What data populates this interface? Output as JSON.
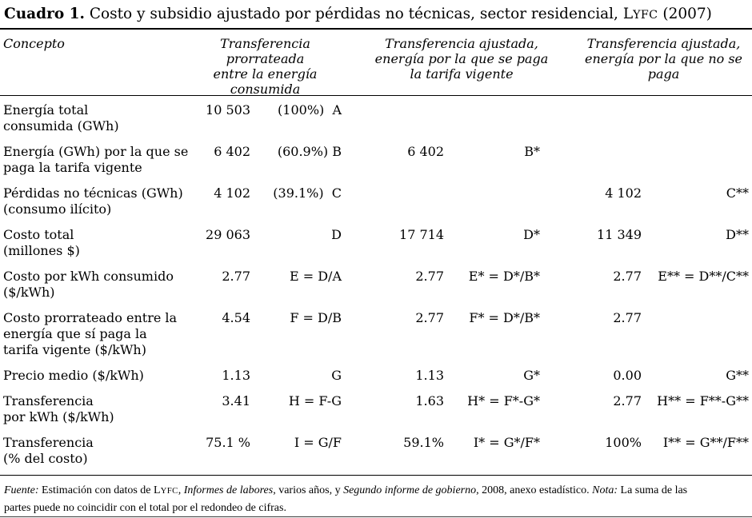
{
  "title_segments": [
    {
      "text": "Cuadro 1.",
      "style": "bold"
    },
    {
      "text": " Costo y subsidio ajustado por pérdidas no técnicas, sector residencial, L",
      "style": ""
    },
    {
      "text": "YFC",
      "style": "smallcaps"
    },
    {
      "text": " (2007)",
      "style": ""
    }
  ],
  "table": {
    "headers": [
      "Concepto",
      "Transferencia prorrateada\nentre la energía consumida",
      "Transferencia ajustada,\nenergía por la que se paga\nla tarifa vigente",
      "Transferencia ajustada,\nenergía por la que no se\npaga"
    ],
    "rows": [
      {
        "concept": "Energía total\nconsumida (GWh)",
        "v1": "10 503",
        "l1": "(100%)  A",
        "v2": "",
        "l2": "",
        "v3": "",
        "l3": ""
      },
      {
        "concept": "Energía (GWh) por la que se\npaga la tarifa vigente",
        "v1": "6 402",
        "l1": "(60.9%) B",
        "v2": "6 402",
        "l2": "B*",
        "v3": "",
        "l3": ""
      },
      {
        "concept": "Pérdidas no técnicas (GWh)\n(consumo ilícito)",
        "v1": "4 102",
        "l1": "(39.1%)  C",
        "v2": "",
        "l2": "",
        "v3": "4 102",
        "l3": "C**"
      },
      {
        "concept": "Costo total\n(millones $)",
        "v1": "29 063",
        "l1": "D",
        "v2": "17 714",
        "l2": "D*",
        "v3": "11 349",
        "l3": "D**"
      },
      {
        "concept": "Costo por kWh consumido\n($/kWh)",
        "v1": "2.77",
        "l1": "E = D/A",
        "v2": "2.77",
        "l2": "E* = D*/B*",
        "v3": "2.77",
        "l3": "E** = D**/C**"
      },
      {
        "concept": "Costo prorrateado entre la\nenergía que sí paga la\ntarifa vigente ($/kWh)",
        "v1": "4.54",
        "l1": "F = D/B",
        "v2": "2.77",
        "l2": "F* = D*/B*",
        "v3": "2.77",
        "l3": ""
      },
      {
        "concept": "Precio medio ($/kWh)",
        "v1": "1.13",
        "l1": "G",
        "v2": "1.13",
        "l2": "G*",
        "v3": "0.00",
        "l3": "G**"
      },
      {
        "concept": "Transferencia\npor kWh ($/kWh)",
        "v1": "3.41",
        "l1": "H = F-G",
        "v2": "1.63",
        "l2": "H* = F*-G*",
        "v3": "2.77",
        "l3": "H** = F**-G**"
      },
      {
        "concept": "Transferencia\n(% del costo)",
        "v1": "75.1 %",
        "l1": "I = G/F",
        "v2": "59.1%",
        "l2": "I* = G*/F*",
        "v3": "100%",
        "l3": "I** = G**/F**"
      }
    ]
  },
  "footnote_segments": [
    {
      "text": "Fuente:",
      "style": "italic"
    },
    {
      "text": " Estimación con datos de L",
      "style": ""
    },
    {
      "text": "YFC",
      "style": "smallcaps"
    },
    {
      "text": ", ",
      "style": ""
    },
    {
      "text": "Informes de labores",
      "style": "italic"
    },
    {
      "text": ", varios años, y ",
      "style": ""
    },
    {
      "text": "Segundo informe de gobierno",
      "style": "italic"
    },
    {
      "text": ", 2008, anexo estadístico. ",
      "style": ""
    },
    {
      "text": "Nota:",
      "style": "italic"
    },
    {
      "text": " La suma de las\npartes puede no coincidir con el total por el redondeo de cifras.",
      "style": ""
    }
  ]
}
